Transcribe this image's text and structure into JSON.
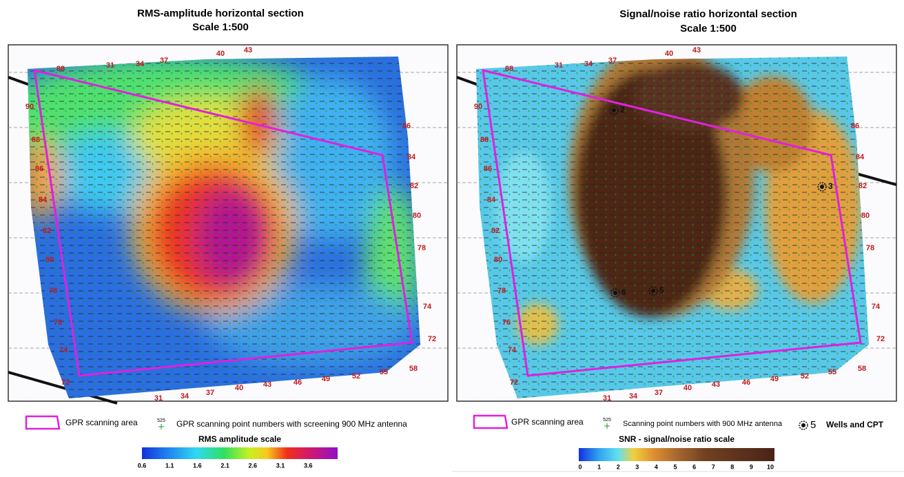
{
  "panels": [
    {
      "title": "RMS-amplitude horizontal section",
      "subtitle": "Scale 1:500",
      "legend": {
        "area": "GPR scanning area",
        "points_marker": "525",
        "points": "GPR scanning point numbers with screening 900 MHz antenna"
      },
      "scale": {
        "title": "RMS amplitude scale",
        "ticks": [
          0.6,
          1.1,
          1.6,
          2.1,
          2.6,
          3.1,
          3.6
        ]
      },
      "map_labels": [
        90,
        88,
        86,
        84,
        82,
        80,
        78,
        76,
        74,
        72,
        88,
        31,
        34,
        37,
        40,
        43,
        31,
        34,
        37,
        40,
        43,
        46,
        49,
        52,
        55,
        58,
        86,
        84,
        82,
        80,
        78,
        74,
        72
      ]
    },
    {
      "title": "Signal/noise ratio horizontal section",
      "subtitle": "Scale 1:500",
      "legend": {
        "area": "GPR scanning area",
        "points_marker": "525",
        "points": "Scanning point numbers with 900 MHz antenna",
        "wells_marker": "5",
        "wells": "Wells and CPT"
      },
      "scale": {
        "title": "SNR - signal/noise ratio scale",
        "ticks": [
          0,
          1,
          2,
          3,
          4,
          5,
          6,
          7,
          8,
          9,
          10
        ]
      },
      "map_labels": [
        90,
        88,
        86,
        84,
        82,
        80,
        78,
        76,
        74,
        72,
        88,
        31,
        34,
        37,
        40,
        43,
        31,
        34,
        37,
        40,
        43,
        46,
        49,
        52,
        55,
        58,
        86,
        84,
        82,
        80,
        78,
        74,
        72
      ],
      "well_labels": [
        "2",
        "3",
        "5",
        "6"
      ]
    }
  ]
}
